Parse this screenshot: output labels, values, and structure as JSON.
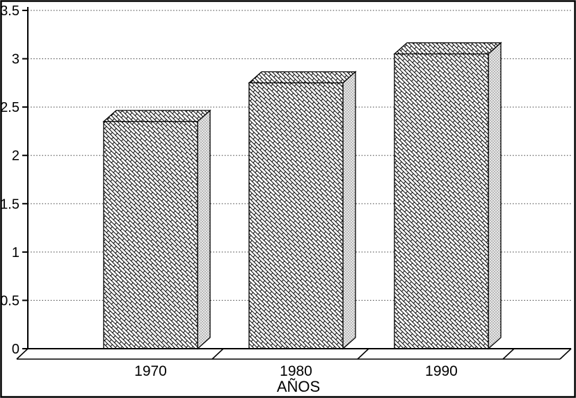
{
  "chart_data": {
    "type": "bar",
    "style": "3d-bar-scanned-monochrome",
    "title": "",
    "categories": [
      "1970",
      "1980",
      "1990"
    ],
    "values": [
      2.35,
      2.75,
      3.05
    ],
    "xlabel": "AÑOS",
    "ylabel": "",
    "ylim": [
      0,
      3.5
    ],
    "yticks": [
      0,
      0.5,
      1,
      1.5,
      2,
      2.5,
      3,
      3.5
    ],
    "ytick_labels": [
      "0",
      "0.5",
      "1",
      "1.5",
      "2",
      "2.5",
      "3",
      "3.5"
    ],
    "grid": "dotted-horizontal",
    "legend": "none",
    "colors": {
      "ink": "#000000",
      "background": "#ffffff",
      "bar_side_fill": "#e9e9e9"
    },
    "bar_fill_pattern": "diagonal-brick-hatch",
    "bar_side_pattern": "halftone-dots"
  }
}
